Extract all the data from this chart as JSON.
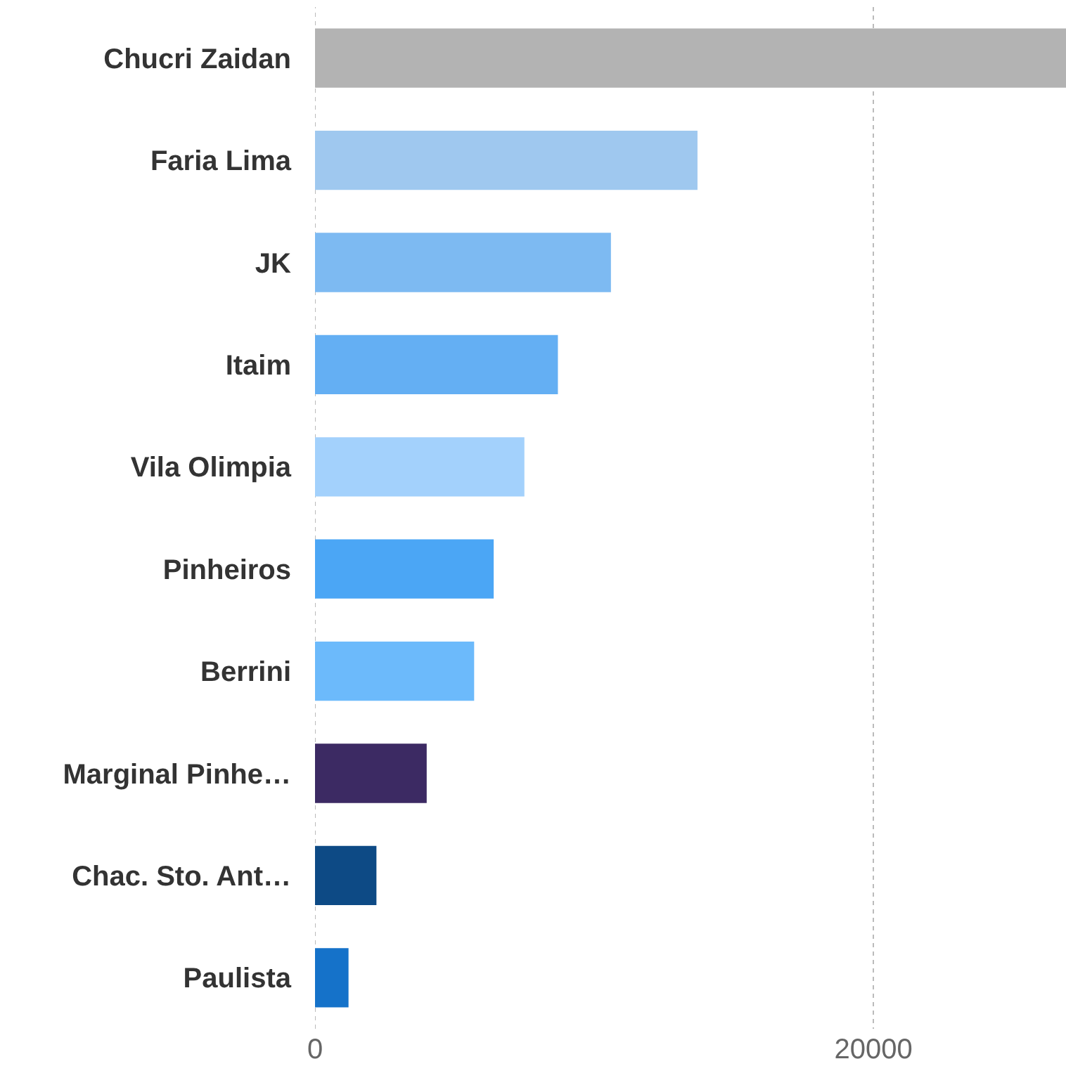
{
  "chart_data": {
    "type": "bar",
    "orientation": "horizontal",
    "categories": [
      "Chucri Zaidan",
      "Faria Lima",
      "JK",
      "Itaim",
      "Vila Olimpia",
      "Pinheiros",
      "Berrini",
      "Marginal Pinhe…",
      "Chac. Sto. Ant…",
      "Paulista"
    ],
    "values": [
      26900,
      13700,
      10600,
      8700,
      7500,
      6400,
      5700,
      4000,
      2200,
      1200
    ],
    "colors": [
      "#b3b3b3",
      "#9fc8ef",
      "#7dbaf2",
      "#64aff3",
      "#a3d1fc",
      "#4ba6f5",
      "#6cbafb",
      "#3c2a63",
      "#0d4a85",
      "#1572c9"
    ],
    "xlim": [
      0,
      26900
    ],
    "xticks": [
      0,
      20000
    ],
    "grid": "x"
  }
}
